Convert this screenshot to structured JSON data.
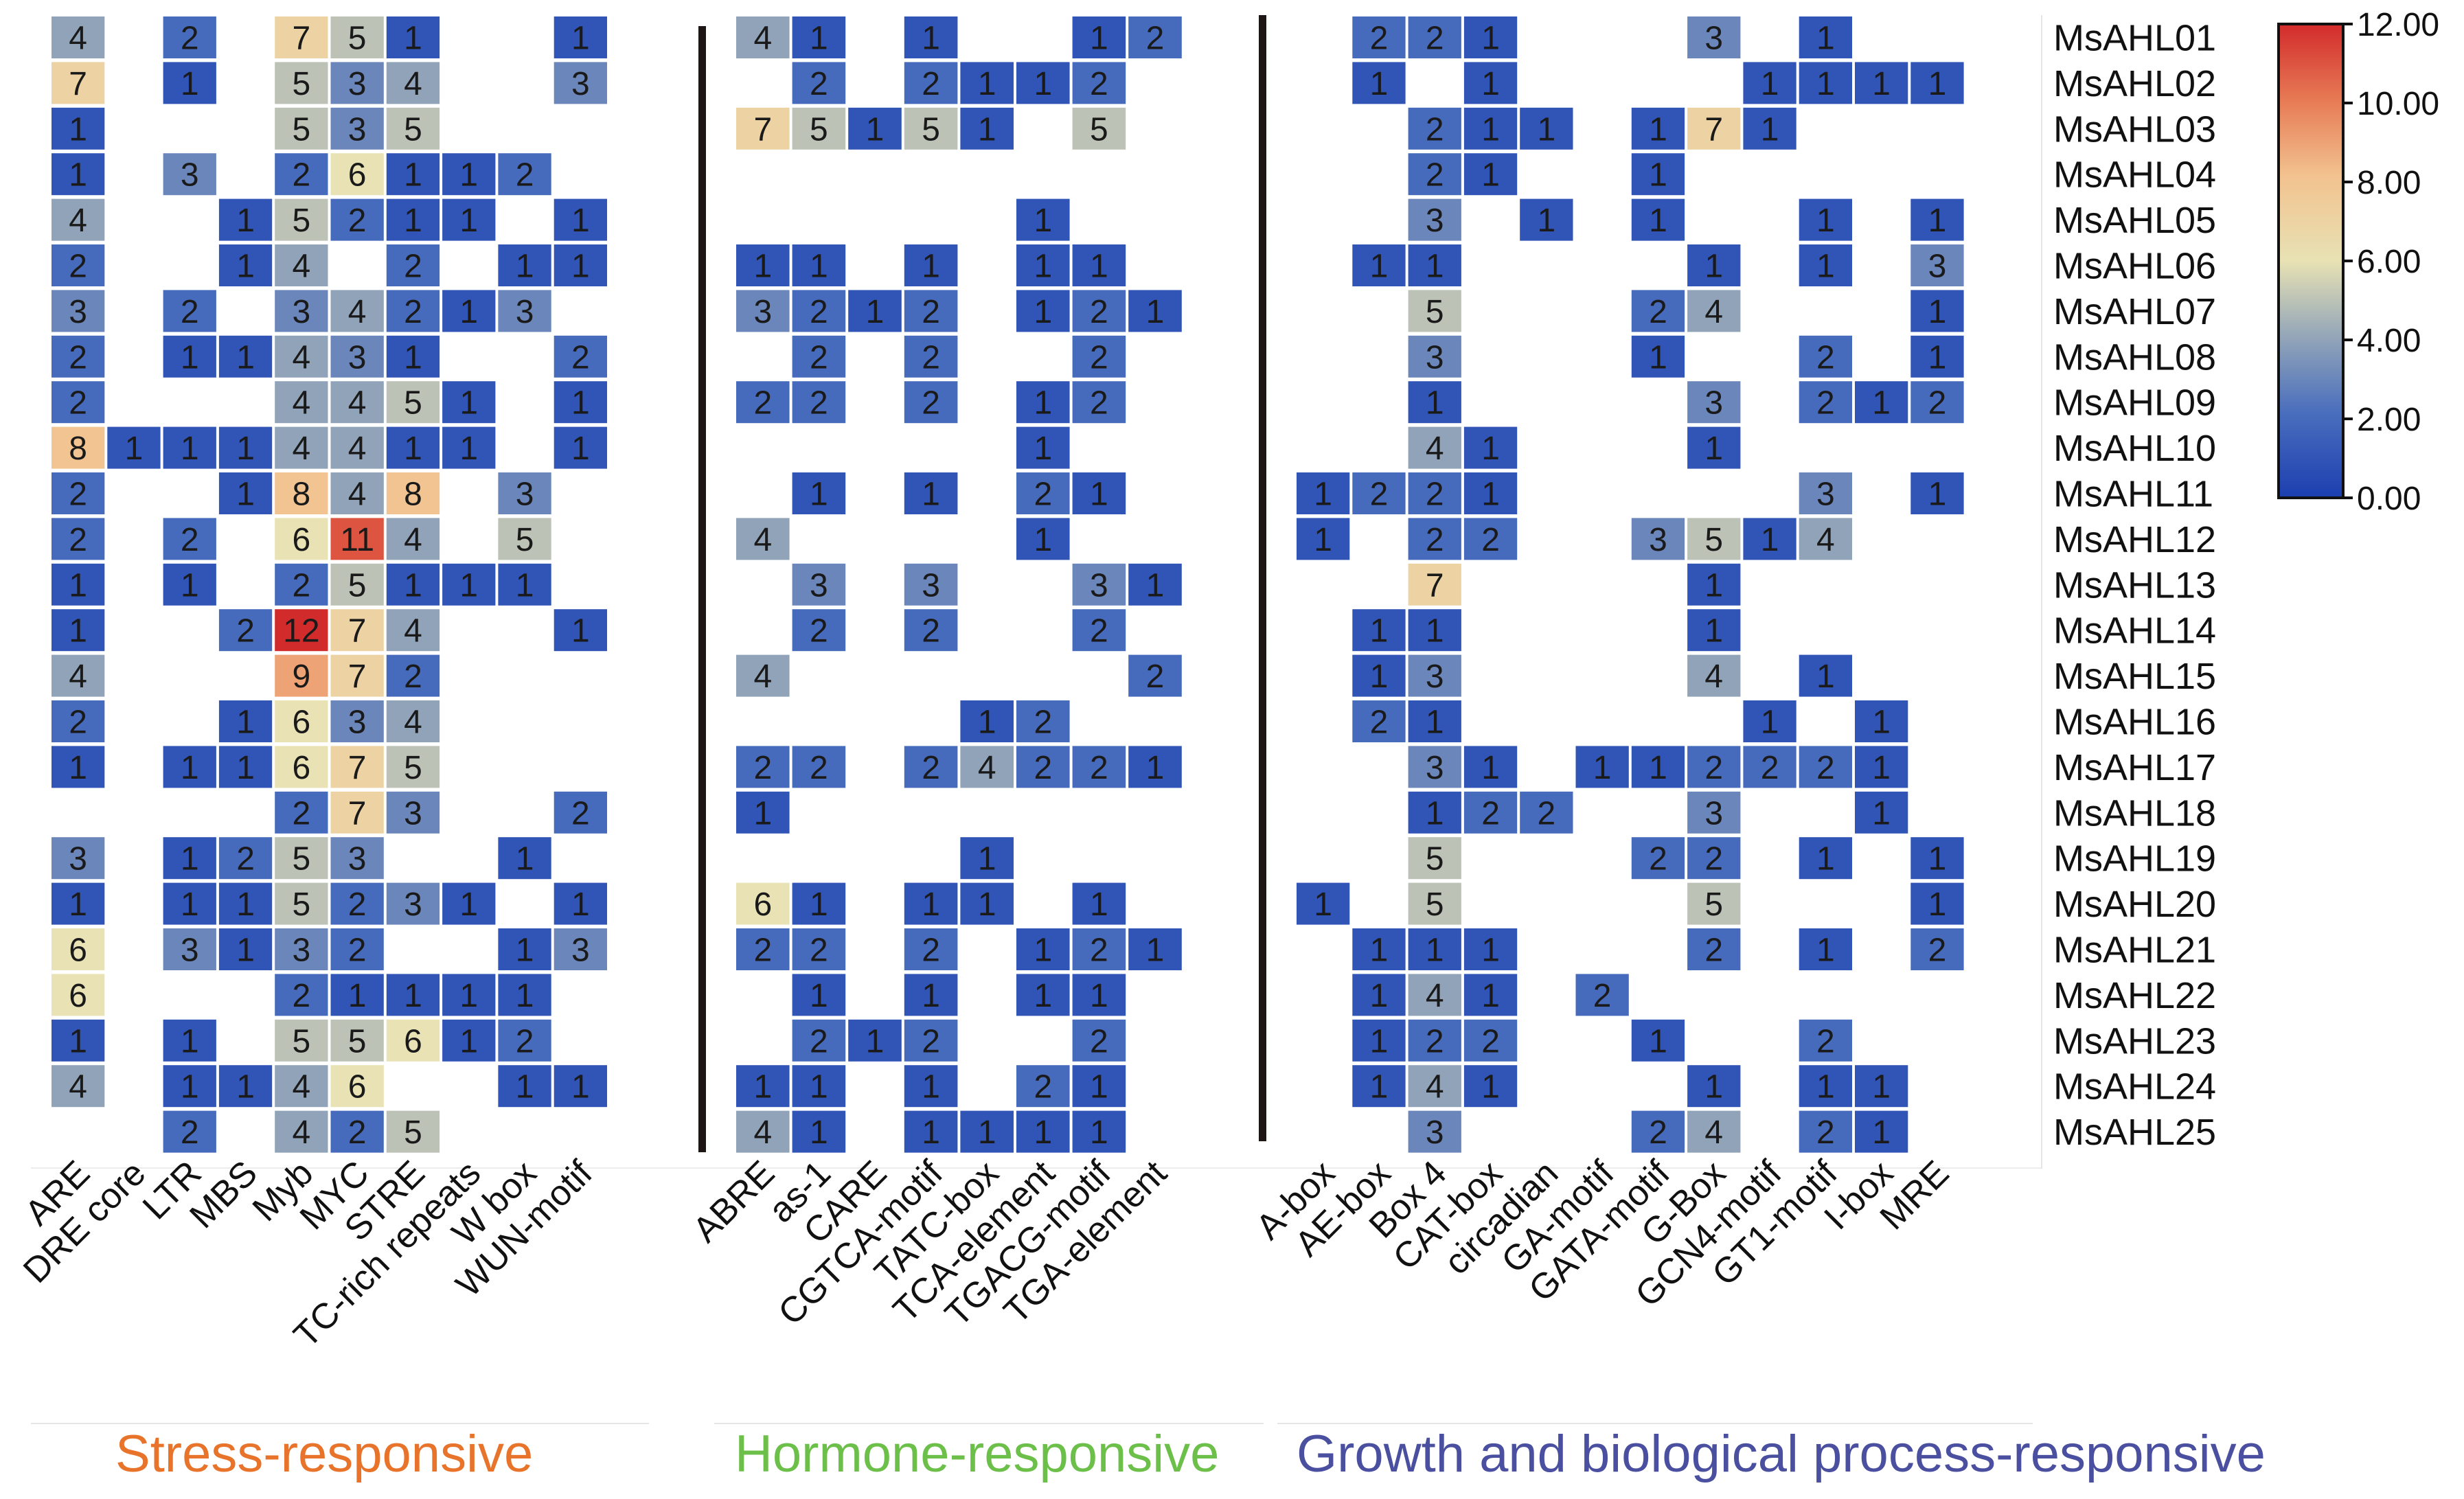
{
  "chart_data": {
    "type": "heatmap",
    "title": "",
    "colorbar": {
      "min": 0,
      "max": 12,
      "ticks": [
        "12.00",
        "10.00",
        "8.00",
        "6.00",
        "4.00",
        "2.00",
        "0.00"
      ],
      "colors": [
        "#2d4fb3",
        "#5a7bbd",
        "#96a7b8",
        "#b9c0b3",
        "#efe0a9",
        "#f0a97e",
        "#d8432d"
      ]
    },
    "genes": [
      "MsAHL01",
      "MsAHL02",
      "MsAHL03",
      "MsAHL04",
      "MsAHL05",
      "MsAHL06",
      "MsAHL07",
      "MsAHL08",
      "MsAHL09",
      "MsAHL10",
      "MsAHL11",
      "MsAHL12",
      "MsAHL13",
      "MsAHL14",
      "MsAHL15",
      "MsAHL16",
      "MsAHL17",
      "MsAHL18",
      "MsAHL19",
      "MsAHL20",
      "MsAHL21",
      "MsAHL22",
      "MsAHL23",
      "MsAHL24",
      "MsAHL25"
    ],
    "groups": [
      {
        "name": "Stress-responsive",
        "color": "#e8742c",
        "columns": [
          "ARE",
          "DRE core",
          "LTR",
          "MBS",
          "Myb",
          "MYC",
          "STRE",
          "TC-rich repeats",
          "W box",
          "WUN-motif"
        ],
        "values": [
          [
            4,
            null,
            2,
            null,
            7,
            5,
            1,
            null,
            null,
            1
          ],
          [
            7,
            null,
            1,
            null,
            5,
            3,
            4,
            null,
            null,
            3
          ],
          [
            1,
            null,
            null,
            null,
            5,
            3,
            5,
            null,
            null,
            null
          ],
          [
            1,
            null,
            3,
            null,
            2,
            6,
            1,
            1,
            2,
            null
          ],
          [
            4,
            null,
            null,
            1,
            5,
            2,
            1,
            1,
            null,
            1
          ],
          [
            2,
            null,
            null,
            1,
            4,
            null,
            2,
            null,
            1,
            1
          ],
          [
            3,
            null,
            2,
            null,
            3,
            4,
            2,
            1,
            3,
            null
          ],
          [
            2,
            null,
            1,
            1,
            4,
            3,
            1,
            null,
            null,
            2
          ],
          [
            2,
            null,
            null,
            null,
            4,
            4,
            5,
            1,
            null,
            1
          ],
          [
            8,
            1,
            1,
            1,
            4,
            4,
            1,
            1,
            null,
            1
          ],
          [
            2,
            null,
            null,
            1,
            8,
            4,
            8,
            null,
            3,
            null
          ],
          [
            2,
            null,
            2,
            null,
            6,
            11,
            4,
            null,
            5,
            null
          ],
          [
            1,
            null,
            1,
            null,
            2,
            5,
            1,
            1,
            1,
            null
          ],
          [
            1,
            null,
            null,
            2,
            12,
            7,
            4,
            null,
            null,
            1
          ],
          [
            4,
            null,
            null,
            null,
            9,
            7,
            2,
            null,
            null,
            null
          ],
          [
            2,
            null,
            null,
            1,
            6,
            3,
            4,
            null,
            null,
            null
          ],
          [
            1,
            null,
            1,
            1,
            6,
            7,
            5,
            null,
            null,
            null
          ],
          [
            null,
            null,
            null,
            null,
            2,
            7,
            3,
            null,
            null,
            2
          ],
          [
            3,
            null,
            1,
            2,
            5,
            3,
            null,
            null,
            1,
            null
          ],
          [
            1,
            null,
            1,
            1,
            5,
            2,
            3,
            1,
            null,
            1
          ],
          [
            6,
            null,
            3,
            1,
            3,
            2,
            null,
            null,
            1,
            3
          ],
          [
            6,
            null,
            null,
            null,
            2,
            1,
            1,
            1,
            1,
            null
          ],
          [
            1,
            null,
            1,
            null,
            5,
            5,
            6,
            1,
            2,
            null
          ],
          [
            4,
            null,
            1,
            1,
            4,
            6,
            null,
            null,
            1,
            1
          ],
          [
            null,
            null,
            2,
            null,
            4,
            2,
            5,
            null,
            null,
            null
          ]
        ]
      },
      {
        "name": "Hormone-responsive",
        "color": "#6cc04a",
        "columns": [
          "ABRE",
          "as-1",
          "CARE",
          "CGTCA-motif",
          "TATC-box",
          "TCA-element",
          "TGACG-motif",
          "TGA-element"
        ],
        "values": [
          [
            4,
            1,
            null,
            1,
            null,
            null,
            1,
            2
          ],
          [
            null,
            2,
            null,
            2,
            1,
            1,
            2,
            null
          ],
          [
            7,
            5,
            1,
            5,
            1,
            null,
            5,
            null
          ],
          [
            null,
            null,
            null,
            null,
            null,
            null,
            null,
            null
          ],
          [
            null,
            null,
            null,
            null,
            null,
            1,
            null,
            null
          ],
          [
            1,
            1,
            null,
            1,
            null,
            1,
            1,
            null
          ],
          [
            3,
            2,
            1,
            2,
            null,
            1,
            2,
            1
          ],
          [
            null,
            2,
            null,
            2,
            null,
            null,
            2,
            null
          ],
          [
            2,
            2,
            null,
            2,
            null,
            1,
            2,
            null
          ],
          [
            null,
            null,
            null,
            null,
            null,
            1,
            null,
            null
          ],
          [
            null,
            1,
            null,
            1,
            null,
            2,
            1,
            null
          ],
          [
            4,
            null,
            null,
            null,
            null,
            1,
            null,
            null
          ],
          [
            null,
            3,
            null,
            3,
            null,
            null,
            3,
            1
          ],
          [
            null,
            2,
            null,
            2,
            null,
            null,
            2,
            null
          ],
          [
            4,
            null,
            null,
            null,
            null,
            null,
            null,
            2
          ],
          [
            null,
            null,
            null,
            null,
            1,
            2,
            null,
            null
          ],
          [
            2,
            2,
            null,
            2,
            4,
            2,
            2,
            1
          ],
          [
            1,
            null,
            null,
            null,
            null,
            null,
            null,
            null
          ],
          [
            null,
            null,
            null,
            null,
            1,
            null,
            null,
            null
          ],
          [
            6,
            1,
            null,
            1,
            1,
            null,
            1,
            null
          ],
          [
            2,
            2,
            null,
            2,
            null,
            1,
            2,
            1
          ],
          [
            null,
            1,
            null,
            1,
            null,
            1,
            1,
            null
          ],
          [
            null,
            2,
            1,
            2,
            null,
            null,
            2,
            null
          ],
          [
            1,
            1,
            null,
            1,
            null,
            2,
            1,
            null
          ],
          [
            4,
            1,
            null,
            1,
            1,
            1,
            1,
            null
          ]
        ]
      },
      {
        "name": "Growth and biological process-responsive",
        "color": "#4a4fa0",
        "columns": [
          "A-box",
          "AE-box",
          "Box 4",
          "CAT-box",
          "circadian",
          "GA-motif",
          "GATA-motif",
          "G-Box",
          "GCN4-motif",
          "GT1-motif",
          "I-box",
          "MRE"
        ],
        "values": [
          [
            null,
            2,
            2,
            1,
            null,
            null,
            null,
            3,
            null,
            1,
            null,
            null
          ],
          [
            null,
            1,
            null,
            1,
            null,
            null,
            null,
            null,
            1,
            1,
            1,
            1
          ],
          [
            null,
            null,
            2,
            1,
            1,
            null,
            1,
            7,
            1,
            null,
            null,
            null
          ],
          [
            null,
            null,
            2,
            1,
            null,
            null,
            1,
            null,
            null,
            null,
            null,
            null
          ],
          [
            null,
            null,
            3,
            null,
            1,
            null,
            1,
            null,
            null,
            1,
            null,
            1
          ],
          [
            null,
            1,
            1,
            null,
            null,
            null,
            null,
            1,
            null,
            1,
            null,
            3
          ],
          [
            null,
            null,
            5,
            null,
            null,
            null,
            2,
            4,
            null,
            null,
            null,
            1
          ],
          [
            null,
            null,
            3,
            null,
            null,
            null,
            1,
            null,
            null,
            2,
            null,
            1
          ],
          [
            null,
            null,
            1,
            null,
            null,
            null,
            null,
            3,
            null,
            2,
            1,
            2
          ],
          [
            null,
            null,
            4,
            1,
            null,
            null,
            null,
            1,
            null,
            null,
            null,
            null
          ],
          [
            1,
            2,
            2,
            1,
            null,
            null,
            null,
            null,
            null,
            3,
            null,
            1
          ],
          [
            1,
            null,
            2,
            2,
            null,
            null,
            3,
            5,
            1,
            4,
            null,
            null
          ],
          [
            null,
            null,
            7,
            null,
            null,
            null,
            null,
            1,
            null,
            null,
            null,
            null
          ],
          [
            null,
            1,
            1,
            null,
            null,
            null,
            null,
            1,
            null,
            null,
            null,
            null
          ],
          [
            null,
            1,
            3,
            null,
            null,
            null,
            null,
            4,
            null,
            1,
            null,
            null
          ],
          [
            null,
            2,
            1,
            null,
            null,
            null,
            null,
            null,
            1,
            null,
            1,
            null
          ],
          [
            null,
            null,
            3,
            1,
            null,
            1,
            1,
            2,
            2,
            2,
            1,
            null
          ],
          [
            null,
            null,
            1,
            2,
            2,
            null,
            null,
            3,
            null,
            null,
            1,
            null
          ],
          [
            null,
            null,
            5,
            null,
            null,
            null,
            2,
            2,
            null,
            1,
            null,
            1
          ],
          [
            1,
            null,
            5,
            null,
            null,
            null,
            null,
            5,
            null,
            null,
            null,
            1
          ],
          [
            null,
            1,
            1,
            1,
            null,
            null,
            null,
            2,
            null,
            1,
            null,
            2
          ],
          [
            null,
            1,
            4,
            1,
            null,
            2,
            null,
            null,
            null,
            null,
            null,
            null
          ],
          [
            null,
            1,
            2,
            2,
            null,
            null,
            1,
            null,
            null,
            2,
            null,
            null
          ],
          [
            null,
            1,
            4,
            1,
            null,
            null,
            null,
            1,
            null,
            1,
            1,
            null
          ],
          [
            null,
            null,
            3,
            null,
            null,
            null,
            2,
            4,
            null,
            2,
            1,
            null
          ]
        ]
      }
    ]
  },
  "footer": {
    "stress": "Stress-responsive",
    "hormone": "Hormone-responsive",
    "growth": "Growth and biological process-responsive"
  }
}
